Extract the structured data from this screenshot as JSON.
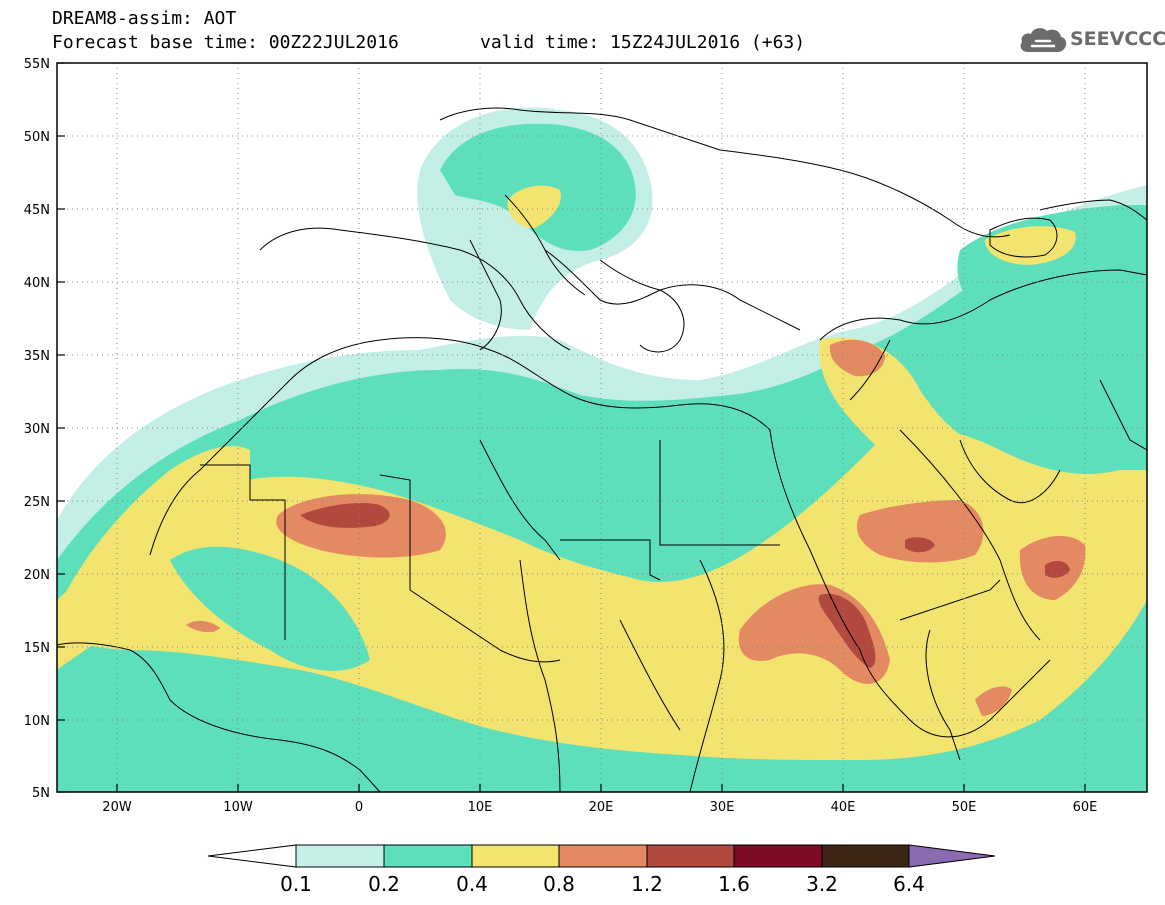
{
  "header": {
    "title": "DREAM8-assim: AOT",
    "base_time": "Forecast base time: 00Z22JUL2016",
    "valid_time": "valid time: 15Z24JUL2016 (+63)",
    "logo_text": "SEEVCCC",
    "logo_icon": "cloud-icon"
  },
  "axes": {
    "lat_labels": [
      "55N",
      "50N",
      "45N",
      "40N",
      "35N",
      "30N",
      "25N",
      "20N",
      "15N",
      "10N",
      "5N"
    ],
    "lon_labels": [
      "20W",
      "10W",
      "0",
      "10E",
      "20E",
      "30E",
      "40E",
      "50E",
      "60E"
    ]
  },
  "colorbar": {
    "labels": [
      "0.1",
      "0.2",
      "0.4",
      "0.8",
      "1.2",
      "1.6",
      "3.2",
      "6.4"
    ],
    "colors": [
      "#ffffff",
      "#c4efe7",
      "#5ddfbb",
      "#f2e46e",
      "#e38a62",
      "#b1493f",
      "#7d0c24",
      "#3d2616",
      "#8a6ab0"
    ]
  },
  "map_colors": {
    "c01": "#c4efe7",
    "c02": "#5ddfbb",
    "c04": "#f2e46e",
    "c08": "#e38a62",
    "c12": "#b1493f",
    "c16": "#7d0c24"
  }
}
